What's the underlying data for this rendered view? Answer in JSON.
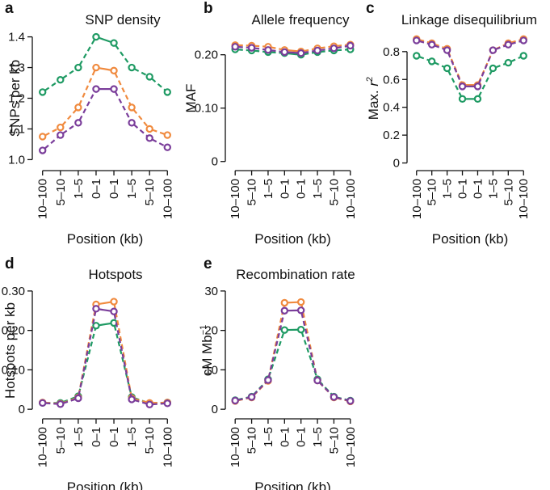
{
  "figure": {
    "x_categories": [
      "10–100",
      "5–10",
      "1–5",
      "0–1",
      "0–1",
      "1–5",
      "5–10",
      "10–100"
    ]
  },
  "series_colors": {
    "green": "#1e9a63",
    "orange": "#f08a3e",
    "purple": "#7a3d9a"
  },
  "chart_data": [
    {
      "letter": "a",
      "type": "line",
      "title": "SNP density",
      "xlabel": "Position (kb)",
      "ylabel": "SNPs per kb",
      "categories": [
        "10–100",
        "5–10",
        "1–5",
        "0–1",
        "0–1",
        "1–5",
        "5–10",
        "10–100"
      ],
      "ylim": [
        0.98,
        1.42
      ],
      "yticks": [
        1.0,
        1.1,
        1.2,
        1.3,
        1.4
      ],
      "ytick_labels": [
        "1.0",
        "1.1",
        "1.2",
        "1.3",
        "1.4"
      ],
      "grid": false,
      "series": [
        {
          "color": "#1e9a63",
          "values": [
            1.22,
            1.26,
            1.3,
            1.4,
            1.38,
            1.3,
            1.27,
            1.22
          ]
        },
        {
          "color": "#f08a3e",
          "values": [
            1.075,
            1.105,
            1.17,
            1.3,
            1.29,
            1.17,
            1.1,
            1.08
          ]
        },
        {
          "color": "#7a3d9a",
          "values": [
            1.03,
            1.08,
            1.12,
            1.23,
            1.23,
            1.12,
            1.07,
            1.04
          ]
        }
      ]
    },
    {
      "letter": "b",
      "type": "line",
      "title": "Allele frequency",
      "xlabel": "Position (kb)",
      "ylabel": "MAF",
      "categories": [
        "10–100",
        "5–10",
        "1–5",
        "0–1",
        "0–1",
        "1–5",
        "5–10",
        "10–100"
      ],
      "ylim": [
        -0.008,
        0.245
      ],
      "yticks": [
        0,
        0.1,
        0.2
      ],
      "ytick_labels": [
        "0",
        "0.10",
        "0.20"
      ],
      "grid": false,
      "series": [
        {
          "color": "#1e9a63",
          "values": [
            0.21,
            0.208,
            0.205,
            0.203,
            0.2,
            0.205,
            0.208,
            0.21
          ]
        },
        {
          "color": "#f08a3e",
          "values": [
            0.218,
            0.217,
            0.215,
            0.209,
            0.206,
            0.212,
            0.216,
            0.219
          ]
        },
        {
          "color": "#7a3d9a",
          "values": [
            0.215,
            0.213,
            0.209,
            0.205,
            0.203,
            0.208,
            0.212,
            0.217
          ]
        }
      ]
    },
    {
      "letter": "c",
      "type": "line",
      "title": "Linkage disequilibrium",
      "xlabel": "Position (kb)",
      "ylabel_main": "Max. ",
      "ylabel_var": "r",
      "ylabel_sup": "2",
      "categories": [
        "10–100",
        "5–10",
        "1–5",
        "0–1",
        "0–1",
        "1–5",
        "5–10",
        "10–100"
      ],
      "ylim": [
        -0.02,
        0.95
      ],
      "yticks": [
        0,
        0.2,
        0.4,
        0.6,
        0.8
      ],
      "ytick_labels": [
        "0",
        "0.2",
        "0.4",
        "0.6",
        "0.8"
      ],
      "grid": false,
      "series": [
        {
          "color": "#1e9a63",
          "values": [
            0.77,
            0.73,
            0.68,
            0.46,
            0.46,
            0.68,
            0.72,
            0.77
          ]
        },
        {
          "color": "#f08a3e",
          "values": [
            0.89,
            0.86,
            0.82,
            0.56,
            0.56,
            0.81,
            0.86,
            0.89
          ]
        },
        {
          "color": "#7a3d9a",
          "values": [
            0.88,
            0.85,
            0.81,
            0.55,
            0.55,
            0.81,
            0.85,
            0.88
          ]
        }
      ]
    },
    {
      "letter": "d",
      "type": "line",
      "title": "Hotspots",
      "xlabel": "Position (kb)",
      "ylabel": "Hotspots per kb",
      "categories": [
        "10–100",
        "5–10",
        "1–5",
        "0–1",
        "0–1",
        "1–5",
        "5–10",
        "10–100"
      ],
      "ylim": [
        -0.012,
        0.31
      ],
      "yticks": [
        0,
        0.1,
        0.2,
        0.3
      ],
      "ytick_labels": [
        "0",
        "0.10",
        "0.20",
        "0.30"
      ],
      "grid": false,
      "series": [
        {
          "color": "#1e9a63",
          "values": [
            0.016,
            0.016,
            0.033,
            0.212,
            0.219,
            0.031,
            0.015,
            0.017
          ]
        },
        {
          "color": "#f08a3e",
          "values": [
            0.017,
            0.014,
            0.03,
            0.266,
            0.273,
            0.028,
            0.016,
            0.017
          ]
        },
        {
          "color": "#7a3d9a",
          "values": [
            0.016,
            0.013,
            0.028,
            0.255,
            0.248,
            0.025,
            0.012,
            0.015
          ]
        }
      ]
    },
    {
      "letter": "e",
      "type": "line",
      "title": "Recombination rate",
      "xlabel": "Position (kb)",
      "ylabel_main": "cM Mb",
      "ylabel_sup": "−1",
      "categories": [
        "10–100",
        "5–10",
        "1–5",
        "0–1",
        "0–1",
        "1–5",
        "5–10",
        "10–100"
      ],
      "ylim": [
        -1.2,
        31
      ],
      "yticks": [
        0,
        10,
        20,
        30
      ],
      "ytick_labels": [
        "0",
        "10",
        "20",
        "30"
      ],
      "grid": false,
      "series": [
        {
          "color": "#1e9a63",
          "values": [
            2.3,
            3.2,
            7.6,
            20.1,
            20.2,
            7.6,
            3.2,
            2.2
          ]
        },
        {
          "color": "#f08a3e",
          "values": [
            2.1,
            3.0,
            7.2,
            27.0,
            27.2,
            7.3,
            3.0,
            2.0
          ]
        },
        {
          "color": "#7a3d9a",
          "values": [
            2.2,
            3.1,
            7.4,
            25.0,
            25.1,
            7.3,
            3.1,
            2.1
          ]
        }
      ]
    }
  ]
}
